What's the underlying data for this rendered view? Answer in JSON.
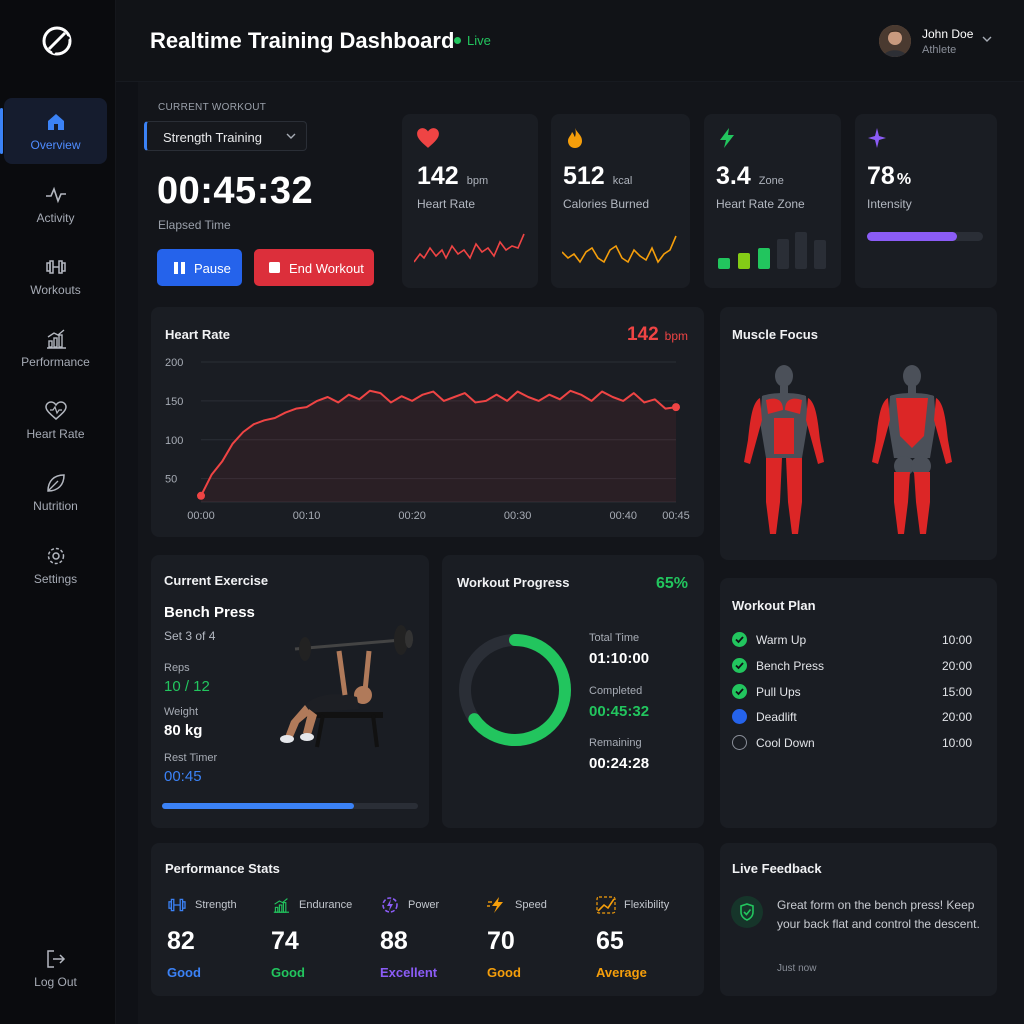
{
  "header": {
    "title": "Realtime Training Dashboard",
    "status": "Live",
    "user_name": "John Doe",
    "user_role": "Athlete"
  },
  "sidebar": {
    "items": [
      {
        "label": "Overview",
        "icon": "home-icon",
        "active": true
      },
      {
        "label": "Activity",
        "icon": "pulse-icon"
      },
      {
        "label": "Workouts",
        "icon": "dumbbell-icon"
      },
      {
        "label": "Performance",
        "icon": "bar-chart-icon"
      },
      {
        "label": "Heart Rate",
        "icon": "heart-icon"
      },
      {
        "label": "Nutrition",
        "icon": "leaf-icon"
      },
      {
        "label": "Settings",
        "icon": "gear-icon"
      }
    ],
    "logout_label": "Log Out"
  },
  "current_workout": {
    "section_label": "CURRENT WORKOUT",
    "selected": "Strength Training",
    "timer": "00:45:32",
    "elapsed_label": "Elapsed Time",
    "pause_label": "Pause",
    "end_label": "End Workout"
  },
  "stats": [
    {
      "value": "142",
      "unit": "bpm",
      "label": "Heart Rate",
      "color": "#ef4444",
      "icon": "heart-icon"
    },
    {
      "value": "512",
      "unit": "kcal",
      "label": "Calories Burned",
      "color": "#f59e0b",
      "icon": "flame-icon"
    },
    {
      "value": "3.4",
      "unit": "Zone",
      "label": "Heart Rate Zone",
      "color": "#22c55e",
      "icon": "bolt-icon"
    },
    {
      "value": "78",
      "unit": "%",
      "label": "Intensity",
      "color": "#8b5cf6",
      "icon": "sparkle-icon",
      "level": 0.78
    }
  ],
  "heart_rate_panel": {
    "title": "Heart Rate",
    "current_value": "142",
    "current_unit": "bpm"
  },
  "muscle_focus": {
    "title": "Muscle Focus"
  },
  "current_exercise": {
    "title": "Current Exercise",
    "name": "Bench Press",
    "set": "Set 3 of 4",
    "reps_label": "Reps",
    "reps": "10 / 12",
    "weight_label": "Weight",
    "weight": "80 kg",
    "rest_label": "Rest Timer",
    "rest": "00:45",
    "progress": 0.75
  },
  "workout_progress": {
    "title": "Workout Progress",
    "percent": "65%",
    "level": 0.65,
    "total_label": "Total Time",
    "total": "01:10:00",
    "completed_label": "Completed",
    "completed": "00:45:32",
    "remaining_label": "Remaining",
    "remaining": "00:24:28"
  },
  "workout_plan": {
    "title": "Workout Plan",
    "items": [
      {
        "name": "Warm Up",
        "time": "10:00",
        "state": "done"
      },
      {
        "name": "Bench Press",
        "time": "20:00",
        "state": "done"
      },
      {
        "name": "Pull Ups",
        "time": "15:00",
        "state": "done"
      },
      {
        "name": "Deadlift",
        "time": "20:00",
        "state": "current"
      },
      {
        "name": "Cool Down",
        "time": "10:00",
        "state": "pending"
      }
    ]
  },
  "performance_stats": {
    "title": "Performance Stats",
    "items": [
      {
        "name": "Strength",
        "value": "82",
        "grade": "Good",
        "color": "#3b82f6",
        "icon": "dumbbell-icon"
      },
      {
        "name": "Endurance",
        "value": "74",
        "grade": "Good",
        "color": "#22c55e",
        "icon": "trend-icon"
      },
      {
        "name": "Power",
        "value": "88",
        "grade": "Excellent",
        "color": "#8b5cf6",
        "icon": "power-icon"
      },
      {
        "name": "Speed",
        "value": "70",
        "grade": "Good",
        "color": "#f59e0b",
        "icon": "speed-icon"
      },
      {
        "name": "Flexibility",
        "value": "65",
        "grade": "Average",
        "color": "#f59e0b",
        "icon": "flex-icon"
      }
    ]
  },
  "live_feedback": {
    "title": "Live Feedback",
    "message": "Great form on the bench press! Keep your back flat and control the descent.",
    "time": "Just now"
  },
  "chart_data": {
    "type": "line",
    "title": "Heart Rate",
    "x_ticks": [
      "00:00",
      "00:10",
      "00:20",
      "00:30",
      "00:40",
      "00:45"
    ],
    "y_ticks": [
      50,
      100,
      150,
      200
    ],
    "ylim": [
      20,
      200
    ],
    "x_minutes": [
      0,
      1,
      2,
      3,
      4,
      5,
      6,
      7,
      8,
      9,
      10,
      11,
      12,
      13,
      14,
      15,
      16,
      17,
      18,
      19,
      20,
      21,
      22,
      23,
      24,
      25,
      26,
      27,
      28,
      29,
      30,
      31,
      32,
      33,
      34,
      35,
      36,
      37,
      38,
      39,
      40,
      41,
      42,
      43,
      44,
      45
    ],
    "values": [
      28,
      55,
      72,
      95,
      110,
      120,
      125,
      128,
      135,
      140,
      142,
      150,
      155,
      148,
      158,
      152,
      163,
      160,
      148,
      156,
      150,
      158,
      162,
      150,
      155,
      160,
      148,
      150,
      158,
      150,
      162,
      155,
      150,
      158,
      152,
      163,
      158,
      150,
      162,
      155,
      150,
      160,
      148,
      152,
      140,
      142
    ],
    "grid": true,
    "series_color": "#ef4444"
  }
}
